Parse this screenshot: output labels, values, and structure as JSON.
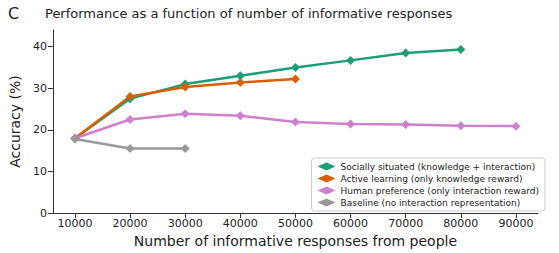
{
  "chart_data": {
    "type": "line",
    "title": "Performance as a function of number of informative responses",
    "annotations": [
      "C"
    ],
    "x_label": "Number of informative responses from people",
    "y_label": "Accuracy (%)",
    "x": [
      10000,
      20000,
      30000,
      40000,
      50000,
      60000,
      70000,
      80000,
      90000
    ],
    "series": [
      {
        "name": "Socially situated (knowledge + interaction)",
        "color": "#1b9e77",
        "marker": "diamond",
        "values": [
          18,
          27.5,
          31,
          33,
          35,
          36.7,
          38.5,
          39.3,
          null
        ]
      },
      {
        "name": "Active learning (only knowledge reward)",
        "color": "#d95f02",
        "marker": "diamond",
        "values": [
          18,
          28,
          30.3,
          31.4,
          32.2,
          null,
          null,
          null,
          null
        ]
      },
      {
        "name": "Human preference (only interaction reward)",
        "color": "#d07fcf",
        "marker": "diamond",
        "values": [
          18,
          22.5,
          23.9,
          23.4,
          21.9,
          21.4,
          21.3,
          21,
          20.9
        ]
      },
      {
        "name": "Baseline (no interaction representation)",
        "color": "#999999",
        "marker": "diamond",
        "values": [
          17.8,
          15.5,
          15.5,
          null,
          null,
          null,
          null,
          null,
          null
        ]
      }
    ],
    "xlim": [
      6000,
      94000
    ],
    "xticks": [
      10000,
      20000,
      30000,
      40000,
      50000,
      60000,
      70000,
      80000,
      90000
    ],
    "ylim": [
      0,
      44
    ],
    "yticks": [
      0,
      10,
      20,
      30,
      40
    ],
    "grid": false,
    "legend": "lower right"
  }
}
